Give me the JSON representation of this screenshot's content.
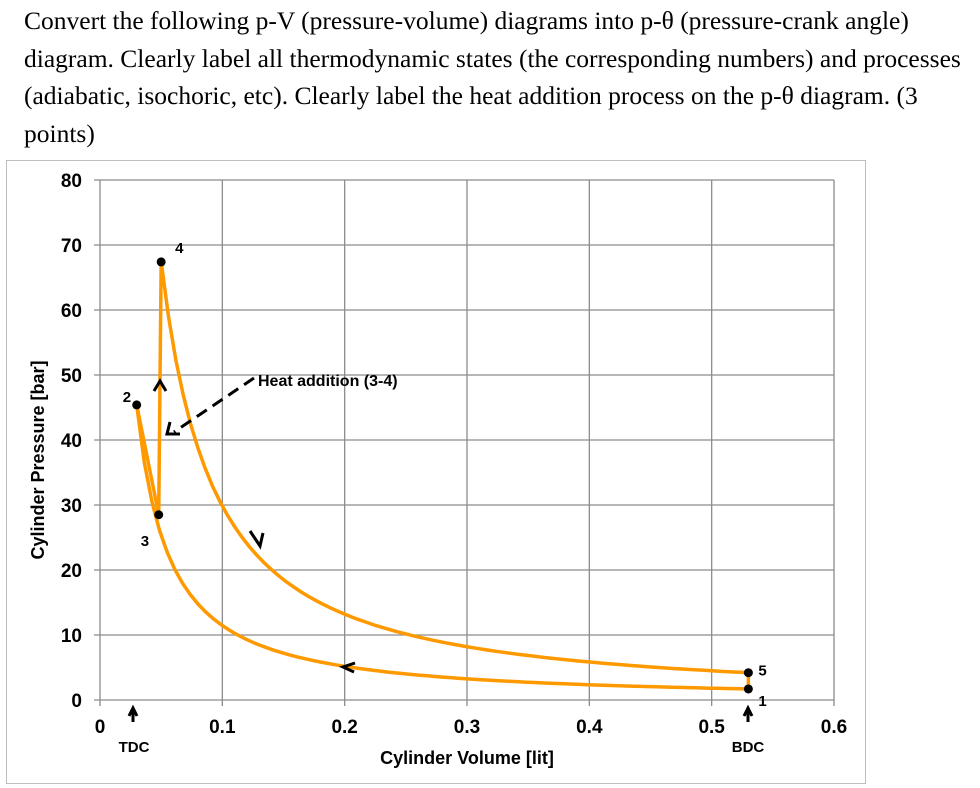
{
  "question": "Convert the following p-V (pressure-volume) diagrams into p-θ (pressure-crank angle) diagram. Clearly label all thermodynamic states (the corresponding numbers) and processes (adiabatic, isochoric, etc). Clearly label the heat addition process on the p-θ diagram. (3 points)",
  "chart_data": {
    "type": "line",
    "xlabel": "Cylinder Volume [lit]",
    "ylabel": "Cylinder Pressure [bar]",
    "xlim": [
      0,
      0.6
    ],
    "ylim": [
      0,
      80
    ],
    "x_ticks": [
      "0",
      "0.1",
      "0.2",
      "0.3",
      "0.4",
      "0.5",
      "0.6"
    ],
    "y_ticks": [
      "0",
      "10",
      "20",
      "30",
      "40",
      "50",
      "60",
      "70",
      "80"
    ],
    "grid": true,
    "line_color": "#FF9900",
    "states": [
      {
        "label": "1",
        "V": 0.53,
        "p": 1.7
      },
      {
        "label": "2",
        "V": 0.03,
        "p": 45.4
      },
      {
        "label": "3",
        "V": 0.048,
        "p": 28.5
      },
      {
        "label": "4",
        "V": 0.05,
        "p": 67.4
      },
      {
        "label": "5",
        "V": 0.53,
        "p": 4.2
      }
    ],
    "annotations": {
      "heat_addition": "Heat addition (3-4)",
      "tdc": "TDC",
      "bdc": "BDC",
      "tdc_volume": 0.028,
      "bdc_volume": 0.53
    }
  }
}
